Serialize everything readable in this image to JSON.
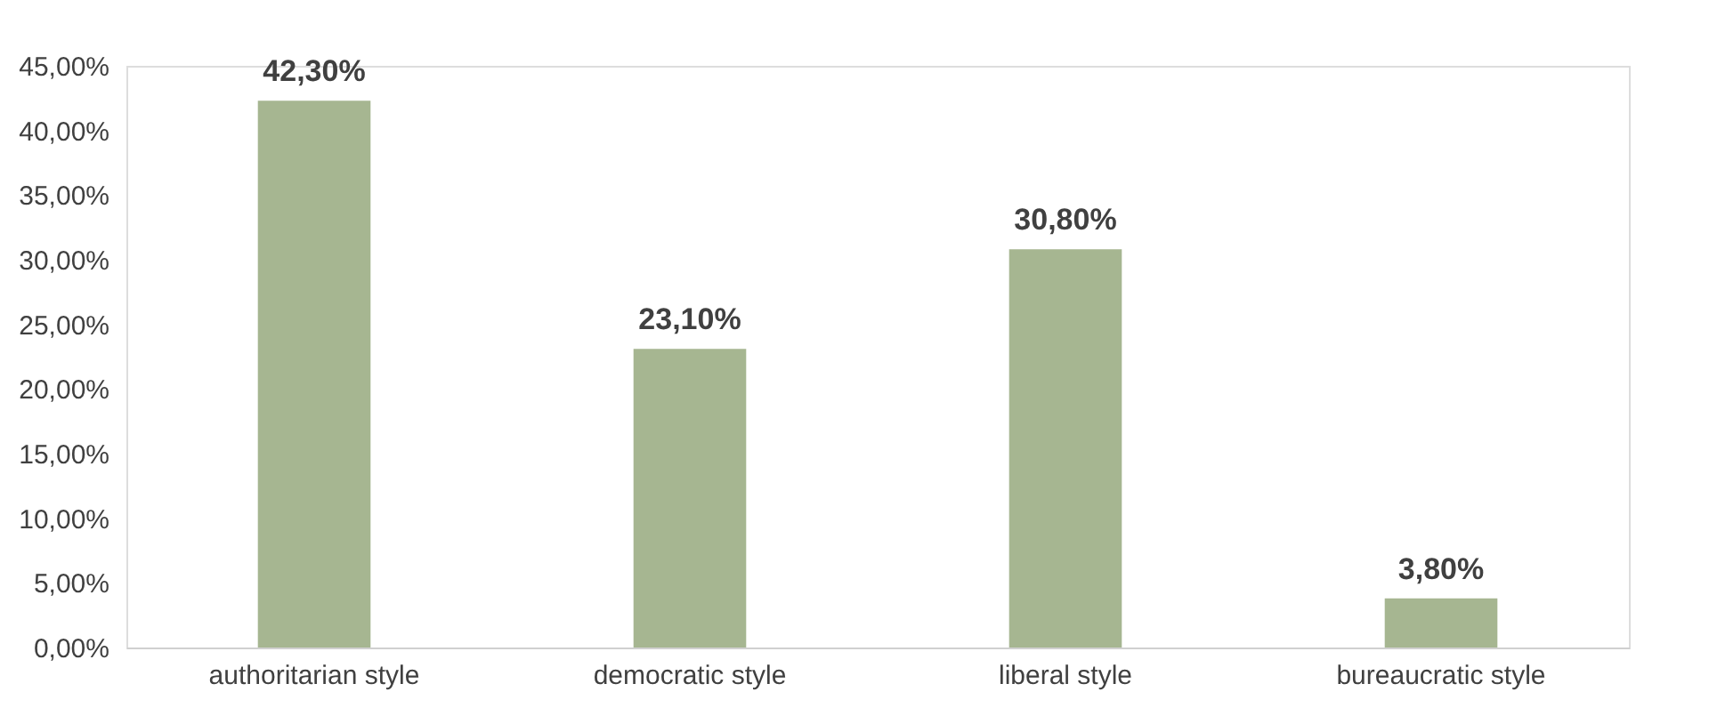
{
  "chart_data": {
    "type": "bar",
    "categories": [
      "authoritarian style",
      "democratic style",
      "liberal style",
      "bureaucratic style"
    ],
    "values": [
      42.3,
      23.1,
      30.8,
      3.8
    ],
    "value_labels": [
      "42,30%",
      "23,10%",
      "30,80%",
      "3,80%"
    ],
    "color": "#a6b691",
    "ylim": [
      0,
      45
    ],
    "yticks": [
      {
        "value": 0,
        "label": "0,00%"
      },
      {
        "value": 5,
        "label": "5,00%"
      },
      {
        "value": 10,
        "label": "10,00%"
      },
      {
        "value": 15,
        "label": "15,00%"
      },
      {
        "value": 20,
        "label": "20,00%"
      },
      {
        "value": 25,
        "label": "25,00%"
      },
      {
        "value": 30,
        "label": "30,00%"
      },
      {
        "value": 35,
        "label": "35,00%"
      },
      {
        "value": 40,
        "label": "40,00%"
      },
      {
        "value": 45,
        "label": "45,00%"
      }
    ],
    "grid": false
  }
}
